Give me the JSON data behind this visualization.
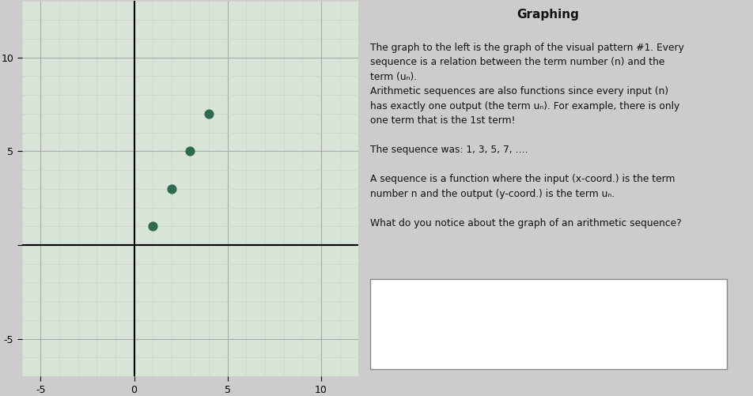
{
  "title": "Graphing",
  "points_x": [
    1,
    2,
    3,
    4
  ],
  "points_y": [
    1,
    3,
    5,
    7
  ],
  "point_color": "#2d6a4f",
  "point_size": 60,
  "xlim": [
    -6,
    12
  ],
  "ylim": [
    -7,
    13
  ],
  "xticks": [
    -5,
    0,
    5,
    10
  ],
  "yticks": [
    -5,
    0,
    5,
    10
  ],
  "minor_xticks_step": 1,
  "minor_yticks_step": 1,
  "grid_color": "#cccccc",
  "major_grid_color": "#aaaaaa",
  "axis_color": "#000000",
  "right_bg": "#cccccc",
  "plot_bg": "#d8e4d8",
  "answer_box_color": "#ffffff",
  "answer_box_border": "#888888",
  "figsize": [
    9.52,
    5.01
  ],
  "dpi": 100
}
